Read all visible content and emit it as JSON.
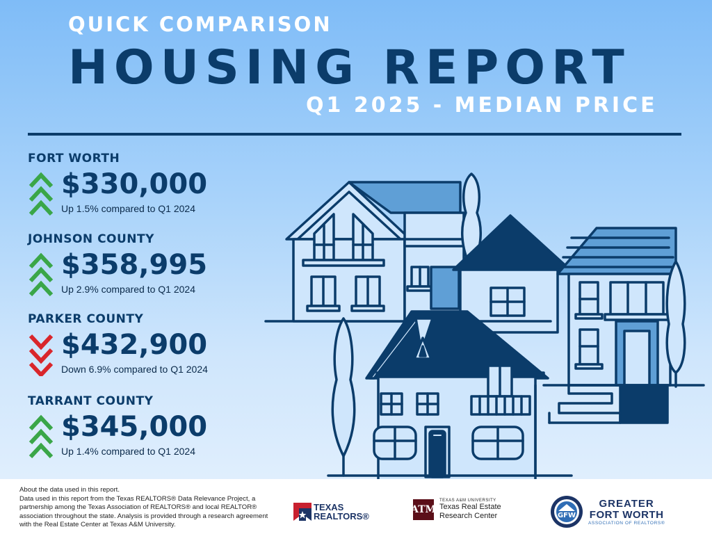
{
  "header": {
    "kicker": "QUICK COMPARISON",
    "title": "HOUSING REPORT",
    "subtitle": "Q1 2025 - MEDIAN PRICE"
  },
  "regions": [
    {
      "name": "FORT WORTH",
      "price": "$330,000",
      "change": "Up 1.5% compared to Q1 2024",
      "direction": "up"
    },
    {
      "name": "JOHNSON COUNTY",
      "price": "$358,995",
      "change": "Up 2.9% compared to Q1 2024",
      "direction": "up"
    },
    {
      "name": "PARKER COUNTY",
      "price": "$432,900",
      "change": "Down 6.9% compared to Q1 2024",
      "direction": "down"
    },
    {
      "name": "TARRANT COUNTY",
      "price": "$345,000",
      "change": "Up 1.4% compared to Q1 2024",
      "direction": "up"
    }
  ],
  "footer": {
    "about_heading": "About the data used in this report.",
    "about_body": "Data used in this report from the Texas REALTORS® Data Relevance Project, a partnership among the Texas Association of REALTORS® and local REALTOR® association throughout the state. Analysis is provided through a research agreement with the Real Estate Center at Texas A&M University.",
    "logos": {
      "texas_realtors": {
        "line1": "TEXAS",
        "line2": "REALTORS®",
        "icon": "texas-realtors-mark"
      },
      "tamu": {
        "mark": "ATM",
        "small": "TEXAS A&M UNIVERSITY",
        "line1": "Texas Real Estate",
        "line2": "Research Center"
      },
      "gfw": {
        "seal": "GFW",
        "line1": "GREATER",
        "line2": "FORT WORTH",
        "line3": "ASSOCIATION OF REALTORS®"
      }
    }
  },
  "colors": {
    "navy": "#0b3c6a",
    "up": "#3aa648",
    "down": "#d9262b",
    "house_fill": "#cfe6fc",
    "roof_light": "#5f9fd6"
  },
  "illustration": "houses-illustration"
}
